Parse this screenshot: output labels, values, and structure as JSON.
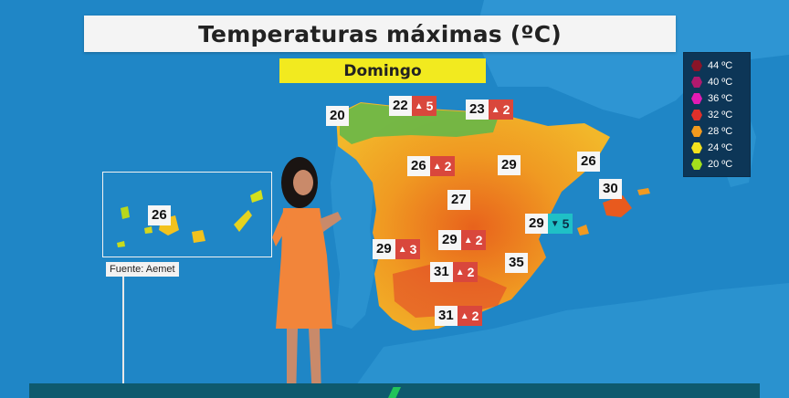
{
  "title": "Temperaturas máximas (ºC)",
  "day": "Domingo",
  "source": "Fuente: Aemet",
  "colors": {
    "sea": "#1f86c6",
    "land_hot": "#e8621c",
    "land_warm": "#f2a21c",
    "land_mild": "#f6d22a",
    "north_green": "#4fb34f",
    "up_badge": "#d9473c",
    "down_badge": "#1fc0c6"
  },
  "legend": [
    {
      "label": "44 ºC",
      "color": "#8a1428"
    },
    {
      "label": "40 ºC",
      "color": "#b01a6e"
    },
    {
      "label": "36 ºC",
      "color": "#e21bb4"
    },
    {
      "label": "32 ºC",
      "color": "#e0302a"
    },
    {
      "label": "28 ºC",
      "color": "#f39a1e"
    },
    {
      "label": "24 ºC",
      "color": "#f3e21e"
    },
    {
      "label": "20 ºC",
      "color": "#a3e01c"
    }
  ],
  "temperatures": {
    "galicia": {
      "value": "20"
    },
    "asturias": {
      "value": "22",
      "delta": "5",
      "direction": "up"
    },
    "pais_vasco": {
      "value": "23",
      "delta": "2",
      "direction": "up"
    },
    "burgos": {
      "value": "26",
      "delta": "2",
      "direction": "up"
    },
    "zaragoza": {
      "value": "29"
    },
    "barcelona": {
      "value": "26"
    },
    "baleares": {
      "value": "30"
    },
    "madrid": {
      "value": "27"
    },
    "valencia": {
      "value": "29",
      "delta": "5",
      "direction": "down"
    },
    "badajoz": {
      "value": "29",
      "delta": "3",
      "direction": "up"
    },
    "albacete": {
      "value": "29",
      "delta": "2",
      "direction": "up"
    },
    "cordoba": {
      "value": "31",
      "delta": "2",
      "direction": "up"
    },
    "murcia": {
      "value": "35"
    },
    "malaga": {
      "value": "31",
      "delta": "2",
      "direction": "up"
    },
    "canarias": {
      "value": "26"
    }
  },
  "icons": {
    "up": "triangle-up-icon",
    "down": "triangle-down-icon"
  }
}
